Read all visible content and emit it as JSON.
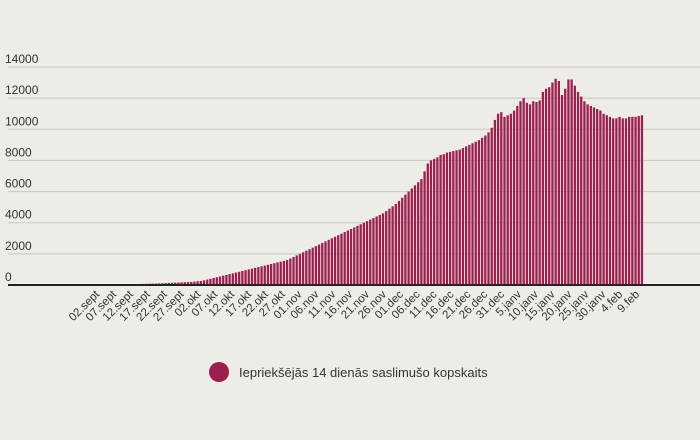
{
  "chart_data": {
    "type": "bar",
    "color": "#9b1f4f",
    "ylim": [
      0,
      14000
    ],
    "y_ticks": [
      0,
      2000,
      4000,
      6000,
      8000,
      10000,
      12000,
      14000
    ],
    "y_tick_labels": [
      "0",
      "2000",
      "4000",
      "6000",
      "8000",
      "10000",
      "12000",
      "14000"
    ],
    "grid": true,
    "legend_position": "bottom",
    "x_tick_labels": [
      "02.sept",
      "07.sept",
      "12.sept",
      "17.sept",
      "22.sept",
      "27.sept",
      "02.okt",
      "07.okt",
      "12.okt",
      "17.okt",
      "22.okt",
      "27.okt",
      "01.nov",
      "06.nov",
      "11.nov",
      "16.nov",
      "21.nov",
      "26.nov",
      "01.dec",
      "06.dec",
      "11.dec",
      "16.dec",
      "21.dec",
      "26.dec",
      "31.dec",
      "5.janv",
      "10.janv",
      "15.janv",
      "20.janv",
      "25.janv",
      "30.janv",
      "4.feb",
      "9.feb"
    ],
    "series": [
      {
        "name": "Iepriekšējās 14 dienās saslimušo kopskaits",
        "values": [
          60,
          60,
          60,
          60,
          60,
          60,
          60,
          60,
          60,
          60,
          60,
          60,
          60,
          60,
          60,
          65,
          70,
          75,
          80,
          85,
          90,
          100,
          110,
          120,
          130,
          140,
          150,
          160,
          170,
          180,
          190,
          200,
          220,
          240,
          260,
          300,
          350,
          400,
          450,
          500,
          550,
          600,
          650,
          700,
          750,
          800,
          850,
          900,
          950,
          1000,
          1050,
          1100,
          1150,
          1200,
          1250,
          1300,
          1350,
          1400,
          1450,
          1500,
          1550,
          1600,
          1700,
          1800,
          1900,
          2000,
          2100,
          2200,
          2300,
          2400,
          2500,
          2600,
          2700,
          2800,
          2900,
          3000,
          3100,
          3200,
          3300,
          3400,
          3500,
          3600,
          3700,
          3800,
          3900,
          4000,
          4100,
          4200,
          4300,
          4400,
          4500,
          4600,
          4750,
          4900,
          5050,
          5200,
          5400,
          5600,
          5800,
          6000,
          6200,
          6400,
          6600,
          6800,
          7300,
          7800,
          8000,
          8100,
          8200,
          8350,
          8400,
          8500,
          8550,
          8600,
          8650,
          8700,
          8800,
          8900,
          9000,
          9100,
          9200,
          9300,
          9450,
          9600,
          9800,
          10100,
          10600,
          11000,
          11100,
          10800,
          10900,
          11000,
          11200,
          11500,
          11800,
          12000,
          11700,
          11600,
          11800,
          11750,
          11850,
          12400,
          12600,
          12700,
          13000,
          13250,
          13100,
          12200,
          12600,
          13200,
          13200,
          12800,
          12400,
          12100,
          11800,
          11600,
          11500,
          11400,
          11300,
          11200,
          11000,
          10900,
          10800,
          10700,
          10700,
          10800,
          10700,
          10700,
          10800,
          10800,
          10800,
          10850,
          10900
        ]
      }
    ]
  },
  "legend": {
    "label": "Iepriekšējās 14 dienās saslimušo kopskaits",
    "color": "#9b1f4f"
  }
}
